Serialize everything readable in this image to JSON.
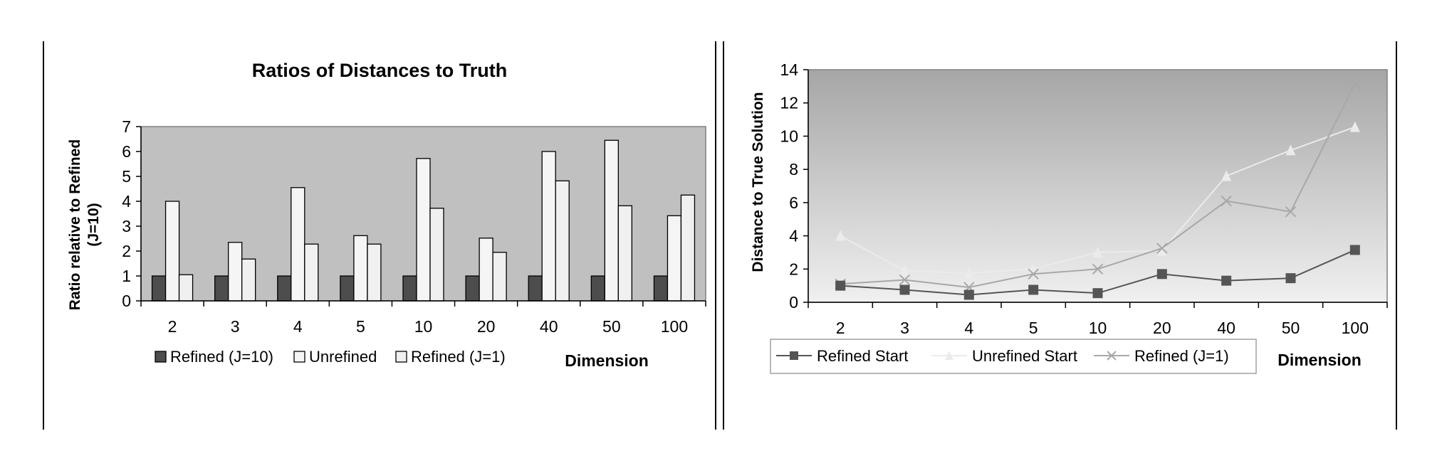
{
  "chart_data": [
    {
      "type": "bar",
      "title": "Ratios of Distances to Truth",
      "xlabel": "Dimension",
      "ylabel_lines": [
        "Ratio relative to Refined",
        "(J=10)"
      ],
      "categories": [
        "2",
        "3",
        "4",
        "5",
        "10",
        "20",
        "40",
        "50",
        "100"
      ],
      "ylim": [
        0,
        7
      ],
      "yticks": [
        "0",
        "1",
        "2",
        "3",
        "4",
        "5",
        "6",
        "7"
      ],
      "grid": false,
      "legend_position": "bottom",
      "series": [
        {
          "name": "Refined (J=10)",
          "color": "#4d4d4d",
          "values": [
            1,
            1,
            1,
            1,
            1,
            1,
            1,
            1,
            1
          ]
        },
        {
          "name": "Unrefined",
          "color": "#f5f5f5",
          "values": [
            4.0,
            2.35,
            4.55,
            2.62,
            5.72,
            2.52,
            6.0,
            6.45,
            3.42
          ]
        },
        {
          "name": "Refined (J=1)",
          "color": "#f0f0f0",
          "values": [
            1.05,
            1.68,
            2.28,
            2.28,
            3.72,
            1.95,
            4.82,
            3.82,
            4.25
          ]
        }
      ],
      "plot_background": "#c0c0c0"
    },
    {
      "type": "line",
      "title": "",
      "xlabel": "Dimension",
      "ylabel": "Distance to True Solution",
      "categories": [
        "2",
        "3",
        "4",
        "5",
        "10",
        "20",
        "40",
        "50",
        "100"
      ],
      "ylim": [
        0,
        14
      ],
      "yticks": [
        "0",
        "2",
        "4",
        "6",
        "8",
        "10",
        "12",
        "14"
      ],
      "grid": false,
      "legend_position": "bottom",
      "series": [
        {
          "name": "Refined Start",
          "color": "#555555",
          "marker": "square",
          "values": [
            1.0,
            0.75,
            0.45,
            0.75,
            0.55,
            1.7,
            1.3,
            1.45,
            3.15
          ]
        },
        {
          "name": "Unrefined Start",
          "color": "#ebebeb",
          "marker": "triangle",
          "values": [
            4.0,
            1.9,
            1.75,
            2.0,
            3.0,
            3.1,
            7.6,
            9.15,
            10.55
          ]
        },
        {
          "name": "Refined (J=1)",
          "color": "#a8a8a8",
          "marker": "x",
          "values": [
            1.1,
            1.35,
            0.9,
            1.7,
            2.0,
            3.25,
            6.1,
            5.45,
            13.15
          ]
        }
      ]
    }
  ]
}
